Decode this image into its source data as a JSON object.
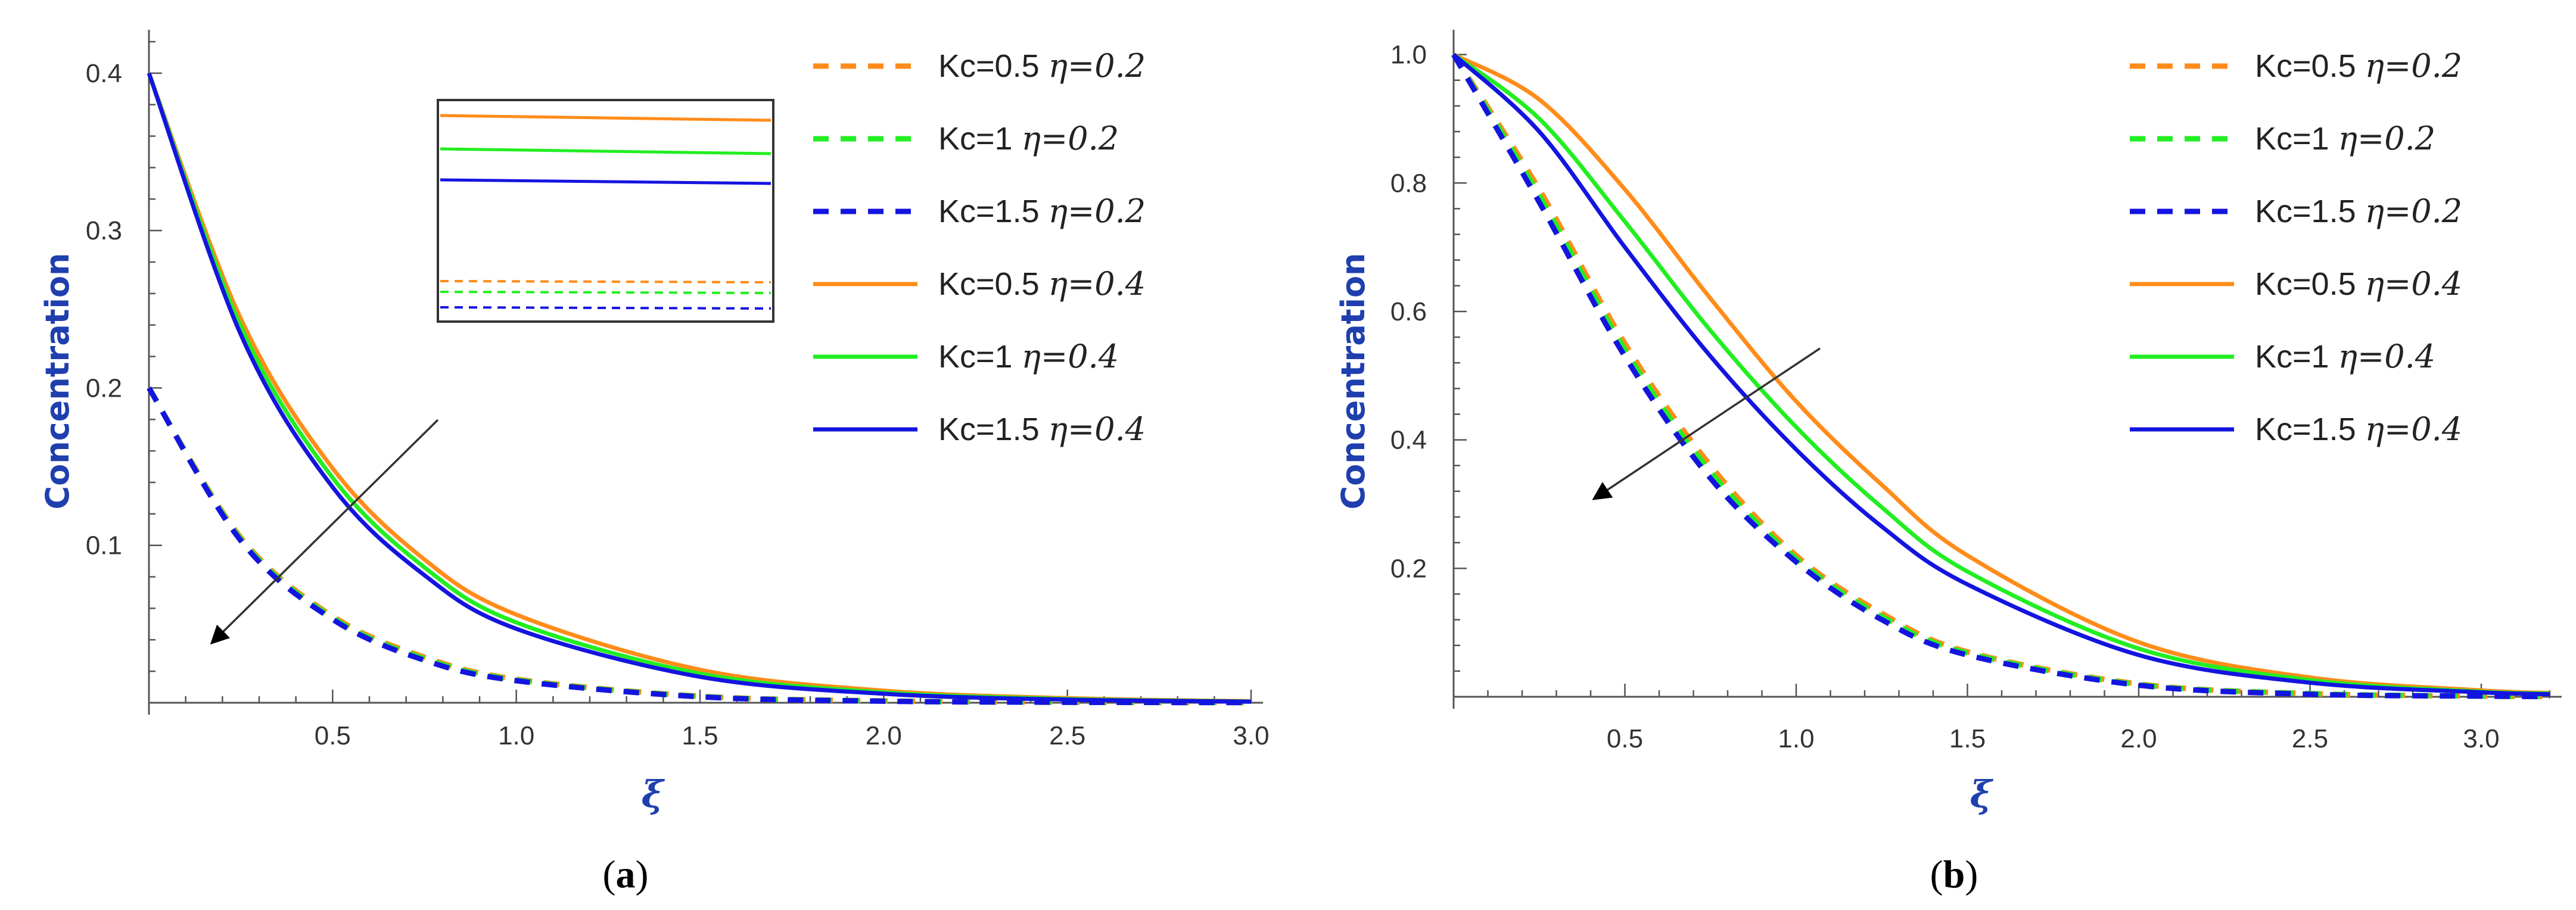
{
  "chart_data": [
    {
      "panel": "a",
      "panel_label": "(a)",
      "panel_letter": "a",
      "type": "line",
      "title": "",
      "xlabel": "ξ",
      "ylabel": "Concentration",
      "xlim": [
        0,
        3.0
      ],
      "ylim": [
        0,
        0.42
      ],
      "xticks": [
        "0.5",
        "1.0",
        "1.5",
        "2.0",
        "2.5",
        "3.0"
      ],
      "yticks": [
        "0.1",
        "0.2",
        "0.3",
        "0.4"
      ],
      "inset": true,
      "arrow": "decreasing concentration with increasing Kc",
      "series": [
        {
          "name": "Kc=0.5 η=0.2",
          "kc": "Kc=0.5",
          "eta": "η=0.2",
          "color": "#ff8c1a",
          "dash": true,
          "x": [
            0,
            0.25,
            0.5,
            0.75,
            1.0,
            1.5,
            2.0,
            2.5,
            3.0
          ],
          "y": [
            0.2,
            0.105,
            0.055,
            0.029,
            0.015,
            0.0042,
            0.0012,
            0.0003,
            0.0001
          ]
        },
        {
          "name": "Kc=1 η=0.2",
          "kc": "Kc=1",
          "eta": "η=0.2",
          "color": "#22ee22",
          "dash": true,
          "x": [
            0,
            0.25,
            0.5,
            0.75,
            1.0,
            1.5,
            2.0,
            2.5,
            3.0
          ],
          "y": [
            0.2,
            0.104,
            0.054,
            0.028,
            0.0145,
            0.004,
            0.0011,
            0.0003,
            0.0001
          ]
        },
        {
          "name": "Kc=1.5 η=0.2",
          "kc": "Kc=1.5",
          "eta": "η=0.2",
          "color": "#1414e0",
          "dash": true,
          "x": [
            0,
            0.25,
            0.5,
            0.75,
            1.0,
            1.5,
            2.0,
            2.5,
            3.0
          ],
          "y": [
            0.2,
            0.103,
            0.053,
            0.027,
            0.014,
            0.0038,
            0.001,
            0.0003,
            0.0001
          ]
        },
        {
          "name": "Kc=0.5 η=0.4",
          "kc": "Kc=0.5",
          "eta": "η=0.4",
          "color": "#ff8c1a",
          "dash": false,
          "x": [
            0,
            0.25,
            0.5,
            0.75,
            1.0,
            1.5,
            2.0,
            2.5,
            3.0
          ],
          "y": [
            0.4,
            0.244,
            0.149,
            0.091,
            0.056,
            0.021,
            0.0077,
            0.0029,
            0.001
          ]
        },
        {
          "name": "Kc=1 η=0.4",
          "kc": "Kc=1",
          "eta": "η=0.4",
          "color": "#22ee22",
          "dash": false,
          "x": [
            0,
            0.25,
            0.5,
            0.75,
            1.0,
            1.5,
            2.0,
            2.5,
            3.0
          ],
          "y": [
            0.4,
            0.239,
            0.143,
            0.086,
            0.051,
            0.0185,
            0.0066,
            0.0024,
            0.0008
          ]
        },
        {
          "name": "Kc=1.5 η=0.4",
          "kc": "Kc=1.5",
          "eta": "η=0.4",
          "color": "#1414e0",
          "dash": false,
          "x": [
            0,
            0.25,
            0.5,
            0.75,
            1.0,
            1.5,
            2.0,
            2.5,
            3.0
          ],
          "y": [
            0.4,
            0.234,
            0.137,
            0.081,
            0.047,
            0.0165,
            0.0057,
            0.002,
            0.0007
          ]
        }
      ]
    },
    {
      "panel": "b",
      "panel_label": "(b)",
      "panel_letter": "b",
      "type": "line",
      "title": "",
      "xlabel": "ξ",
      "ylabel": "Concentration",
      "xlim": [
        0,
        3.2
      ],
      "ylim": [
        0,
        1.02
      ],
      "xticks": [
        "0.5",
        "1.0",
        "1.5",
        "2.0",
        "2.5",
        "3.0"
      ],
      "yticks": [
        "0.2",
        "0.4",
        "0.6",
        "0.8",
        "1.0"
      ],
      "inset": false,
      "arrow": "decreasing concentration with increasing Kc",
      "series": [
        {
          "name": "Kc=0.5 η=0.2",
          "kc": "Kc=0.5",
          "eta": "η=0.2",
          "color": "#ff8c1a",
          "dash": true,
          "x": [
            0,
            0.25,
            0.5,
            0.75,
            1.0,
            1.25,
            1.5,
            2.0,
            2.5,
            3.0,
            3.2
          ],
          "y": [
            1.0,
            0.79,
            0.55,
            0.36,
            0.22,
            0.13,
            0.07,
            0.02,
            0.005,
            0.001,
            0.0005
          ]
        },
        {
          "name": "Kc=1 η=0.2",
          "kc": "Kc=1",
          "eta": "η=0.2",
          "color": "#22ee22",
          "dash": true,
          "x": [
            0,
            0.25,
            0.5,
            0.75,
            1.0,
            1.25,
            1.5,
            2.0,
            2.5,
            3.0,
            3.2
          ],
          "y": [
            1.0,
            0.78,
            0.54,
            0.35,
            0.215,
            0.125,
            0.068,
            0.019,
            0.005,
            0.001,
            0.0005
          ]
        },
        {
          "name": "Kc=1.5 η=0.2",
          "kc": "Kc=1.5",
          "eta": "η=0.2",
          "color": "#1414e0",
          "dash": true,
          "x": [
            0,
            0.25,
            0.5,
            0.75,
            1.0,
            1.25,
            1.5,
            2.0,
            2.5,
            3.0,
            3.2
          ],
          "y": [
            1.0,
            0.77,
            0.53,
            0.34,
            0.21,
            0.12,
            0.065,
            0.018,
            0.004,
            0.001,
            0.0005
          ]
        },
        {
          "name": "Kc=0.5 η=0.4",
          "kc": "Kc=0.5",
          "eta": "η=0.4",
          "color": "#ff8c1a",
          "dash": false,
          "x": [
            0,
            0.25,
            0.5,
            0.75,
            1.0,
            1.25,
            1.5,
            2.0,
            2.5,
            3.0,
            3.2
          ],
          "y": [
            1.0,
            0.93,
            0.79,
            0.62,
            0.46,
            0.33,
            0.22,
            0.085,
            0.03,
            0.01,
            0.006
          ]
        },
        {
          "name": "Kc=1 η=0.4",
          "kc": "Kc=1",
          "eta": "η=0.4",
          "color": "#22ee22",
          "dash": false,
          "x": [
            0,
            0.25,
            0.5,
            0.75,
            1.0,
            1.25,
            1.5,
            2.0,
            2.5,
            3.0,
            3.2
          ],
          "y": [
            1.0,
            0.9,
            0.74,
            0.57,
            0.42,
            0.295,
            0.195,
            0.075,
            0.026,
            0.008,
            0.005
          ]
        },
        {
          "name": "Kc=1.5 η=0.4",
          "kc": "Kc=1.5",
          "eta": "η=0.4",
          "color": "#1414e0",
          "dash": false,
          "x": [
            0,
            0.25,
            0.5,
            0.75,
            1.0,
            1.25,
            1.5,
            2.0,
            2.5,
            3.0,
            3.2
          ],
          "y": [
            1.0,
            0.88,
            0.7,
            0.53,
            0.385,
            0.265,
            0.175,
            0.065,
            0.022,
            0.007,
            0.004
          ]
        }
      ]
    }
  ]
}
